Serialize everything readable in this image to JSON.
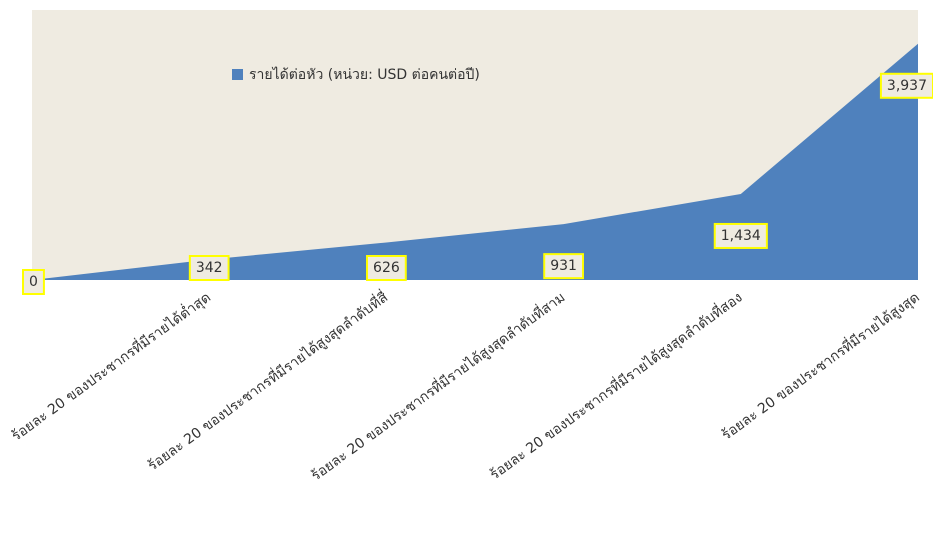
{
  "chart_data": {
    "type": "area",
    "categories": [
      null,
      "ร้อยละ 20 ของประชากรที่มีรายได้ต่ำสุด",
      "ร้อยละ 20 ของประชากรที่มีรายได้สูงสุดลำดับที่สี่",
      "ร้อยละ 20 ของประชากรที่มีรายได้สูงสุดลำดับที่สาม",
      "ร้อยละ 20 ของประชากรที่มีรายได้สูงสุดลำดับที่สอง",
      "ร้อยละ 20 ของประชากรที่มีรายได้สูงสุด"
    ],
    "series": [
      {
        "name": "รายได้ต่อหัว (หน่วย: USD ต่อคนต่อปี)",
        "color": "#4f81bd",
        "values": [
          0,
          342,
          626,
          931,
          1434,
          3937
        ],
        "value_labels": [
          "0",
          "342",
          "626",
          "931",
          "1,434",
          "3,937"
        ]
      }
    ],
    "ylim": [
      0,
      4500
    ]
  }
}
